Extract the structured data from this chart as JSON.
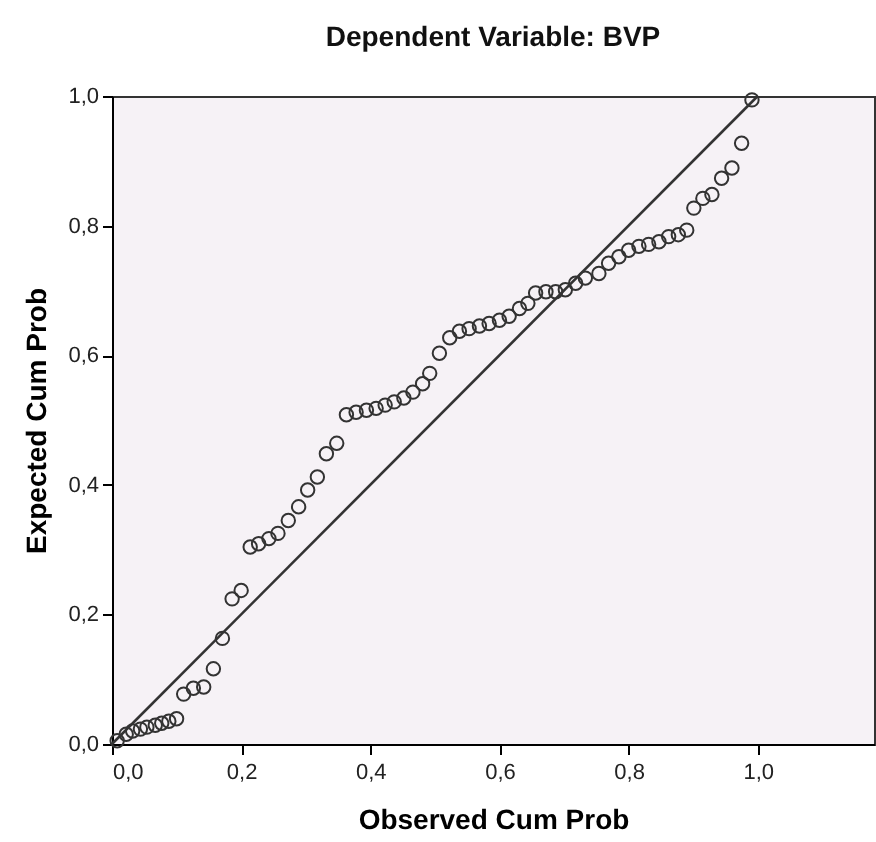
{
  "chart_data": {
    "type": "scatter",
    "title": "Dependent Variable: BVP",
    "xlabel": "Observed Cum Prob",
    "ylabel": "Expected Cum Prob",
    "xlim": [
      0,
      1.18
    ],
    "ylim": [
      0,
      1
    ],
    "xticks": [
      {
        "value": 0,
        "label": "0,0"
      },
      {
        "value": 0.2,
        "label": "0,2"
      },
      {
        "value": 0.4,
        "label": "0,4"
      },
      {
        "value": 0.6,
        "label": "0,6"
      },
      {
        "value": 0.8,
        "label": "0,8"
      },
      {
        "value": 1.0,
        "label": "1,0"
      }
    ],
    "yticks": [
      {
        "value": 0,
        "label": "0,0"
      },
      {
        "value": 0.2,
        "label": "0,2"
      },
      {
        "value": 0.4,
        "label": "0,4"
      },
      {
        "value": 0.6,
        "label": "0,6"
      },
      {
        "value": 0.8,
        "label": "0,8"
      },
      {
        "value": 1.0,
        "label": "1,0"
      }
    ],
    "series": [
      {
        "color": "#333333",
        "marker": "circle",
        "x": [
          0.008,
          0.022,
          0.032,
          0.044,
          0.054,
          0.067,
          0.077,
          0.088,
          0.1,
          0.111,
          0.126,
          0.142,
          0.157,
          0.171,
          0.186,
          0.2,
          0.214,
          0.227,
          0.243,
          0.257,
          0.273,
          0.289,
          0.303,
          0.318,
          0.332,
          0.348,
          0.363,
          0.378,
          0.394,
          0.409,
          0.423,
          0.437,
          0.452,
          0.466,
          0.481,
          0.492,
          0.507,
          0.523,
          0.538,
          0.553,
          0.569,
          0.584,
          0.6,
          0.615,
          0.631,
          0.644,
          0.656,
          0.672,
          0.687,
          0.702,
          0.718,
          0.733,
          0.754,
          0.769,
          0.785,
          0.8,
          0.816,
          0.831,
          0.847,
          0.862,
          0.877,
          0.89,
          0.901,
          0.915,
          0.929,
          0.944,
          0.96,
          0.975,
          0.991
        ],
        "values": [
          0.005,
          0.015,
          0.02,
          0.023,
          0.026,
          0.029,
          0.032,
          0.035,
          0.039,
          0.077,
          0.086,
          0.088,
          0.116,
          0.163,
          0.224,
          0.237,
          0.304,
          0.309,
          0.317,
          0.325,
          0.345,
          0.366,
          0.392,
          0.412,
          0.448,
          0.464,
          0.508,
          0.512,
          0.515,
          0.518,
          0.523,
          0.528,
          0.534,
          0.543,
          0.556,
          0.572,
          0.603,
          0.627,
          0.637,
          0.641,
          0.645,
          0.649,
          0.654,
          0.66,
          0.672,
          0.68,
          0.696,
          0.698,
          0.698,
          0.701,
          0.711,
          0.719,
          0.726,
          0.742,
          0.752,
          0.762,
          0.768,
          0.771,
          0.775,
          0.783,
          0.786,
          0.793,
          0.827,
          0.842,
          0.848,
          0.873,
          0.889,
          0.927,
          0.994
        ]
      },
      {
        "type": "line",
        "color": "#333333",
        "marker": "none",
        "x": [
          0,
          1
        ],
        "values": [
          0,
          1
        ]
      }
    ]
  }
}
